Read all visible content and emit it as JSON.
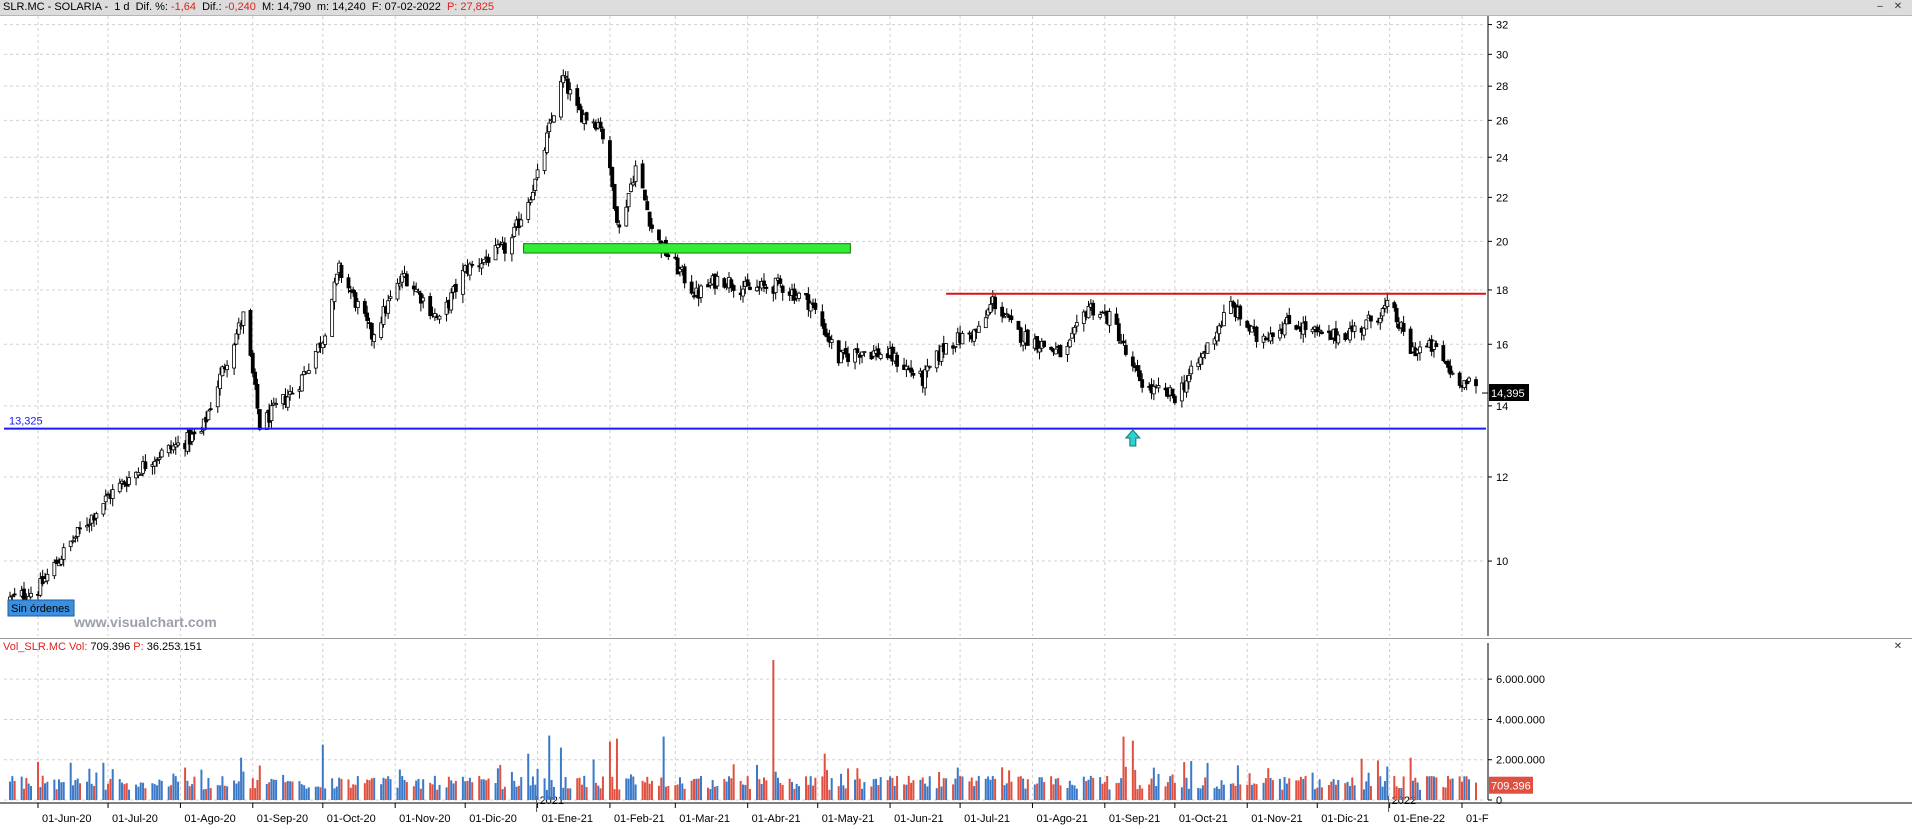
{
  "header": {
    "symbol": "SLR.MC - SOLARIA -",
    "timeframe": "1 d",
    "dif_pct_label": "Dif. %:",
    "dif_pct_value": "-1,64",
    "dif_label": "Dif.:",
    "dif_value": "-0,240",
    "max_label": "M:",
    "max_value": "14,790",
    "min_label": "m:",
    "min_value": "14,240",
    "date_label": "F:",
    "date_value": "07-02-2022",
    "p_label": "P:",
    "p_value": "27,825"
  },
  "volume_header": {
    "name": "Vol_SLR.MC",
    "vol_label": "Vol:",
    "vol_value": "709.396",
    "p_label": "P:",
    "p_value": "36.253.151"
  },
  "watermark": "www.visualchart.com",
  "orders_badge": "Sin órdenes",
  "colors": {
    "candle": "#000000",
    "support_line": "#1a1aff",
    "resistance_line": "#e01010",
    "zone_fill": "#33ee33",
    "zone_border": "#117711",
    "volume_up": "#3a78c8",
    "volume_down": "#e05040",
    "arrow": "#30d0d0",
    "grid": "#d0d0d0"
  },
  "chart_data": {
    "type": "candlestick",
    "y_scale": "log",
    "ylim": [
      8.5,
      32.6
    ],
    "y_ticks": [
      10,
      12,
      14,
      16,
      18,
      20,
      22,
      24,
      26,
      28,
      30,
      32
    ],
    "x_ticks": [
      "01-Jun-20",
      "01-Jul-20",
      "01-Ago-20",
      "01-Sep-20",
      "01-Oct-20",
      "01-Nov-20",
      "01-Dic-20",
      "01-Ene-21",
      "01-Feb-21",
      "01-Mar-21",
      "01-Abr-21",
      "01-May-21",
      "01-Jun-21",
      "01-Jul-21",
      "01-Ago-21",
      "01-Sep-21",
      "01-Oct-21",
      "01-Nov-21",
      "01-Dic-21",
      "01-Ene-22",
      "01-F"
    ],
    "year_labels": [
      {
        "label": "2021",
        "at": "01-Ene-21"
      },
      {
        "label": "2022",
        "at": "01-Ene-22"
      }
    ],
    "price_path": [
      [
        "2020-05-20",
        9.2
      ],
      [
        "2020-06-01",
        9.4
      ],
      [
        "2020-06-15",
        10.4
      ],
      [
        "2020-07-01",
        11.5
      ],
      [
        "2020-07-20",
        12.5
      ],
      [
        "2020-08-10",
        13.2
      ],
      [
        "2020-08-28",
        17.0
      ],
      [
        "2020-09-04",
        13.4
      ],
      [
        "2020-09-20",
        14.6
      ],
      [
        "2020-10-01",
        16.2
      ],
      [
        "2020-10-08",
        18.8
      ],
      [
        "2020-10-22",
        16.3
      ],
      [
        "2020-11-05",
        18.6
      ],
      [
        "2020-11-20",
        16.8
      ],
      [
        "2020-12-01",
        18.8
      ],
      [
        "2020-12-20",
        19.8
      ],
      [
        "2021-01-01",
        23.0
      ],
      [
        "2021-01-12",
        28.5
      ],
      [
        "2021-01-18",
        26.5
      ],
      [
        "2021-01-28",
        25.8
      ],
      [
        "2021-02-05",
        20.5
      ],
      [
        "2021-02-12",
        23.5
      ],
      [
        "2021-02-20",
        20.2
      ],
      [
        "2021-03-01",
        19.0
      ],
      [
        "2021-03-10",
        17.8
      ],
      [
        "2021-03-20",
        18.5
      ],
      [
        "2021-04-01",
        18.0
      ],
      [
        "2021-04-15",
        18.2
      ],
      [
        "2021-04-28",
        17.5
      ],
      [
        "2021-05-10",
        15.5
      ],
      [
        "2021-05-20",
        15.8
      ],
      [
        "2021-06-01",
        15.6
      ],
      [
        "2021-06-15",
        14.8
      ],
      [
        "2021-06-25",
        16.0
      ],
      [
        "2021-07-10",
        16.5
      ],
      [
        "2021-07-15",
        17.6
      ],
      [
        "2021-07-25",
        16.4
      ],
      [
        "2021-08-05",
        16.0
      ],
      [
        "2021-08-15",
        15.6
      ],
      [
        "2021-08-25",
        17.4
      ],
      [
        "2021-09-05",
        16.8
      ],
      [
        "2021-09-12",
        15.2
      ],
      [
        "2021-09-20",
        14.5
      ],
      [
        "2021-10-01",
        14.3
      ],
      [
        "2021-10-10",
        15.2
      ],
      [
        "2021-10-25",
        17.4
      ],
      [
        "2021-11-05",
        16.2
      ],
      [
        "2021-11-20",
        16.8
      ],
      [
        "2021-12-05",
        16.2
      ],
      [
        "2021-12-20",
        16.6
      ],
      [
        "2022-01-01",
        17.4
      ],
      [
        "2022-01-10",
        15.8
      ],
      [
        "2022-01-20",
        15.9
      ],
      [
        "2022-01-28",
        15.0
      ],
      [
        "2022-02-07",
        14.5
      ]
    ],
    "last_price": "14,395",
    "support": {
      "value": 13.325,
      "label": "13,325",
      "from": "2020-05-20",
      "to": "2022-02-07"
    },
    "resistance": {
      "value": 17.85,
      "from": "2021-06-25",
      "to": "2022-02-07"
    },
    "zone": {
      "from": "2020-12-26",
      "to": "2021-05-15",
      "low": 19.5,
      "high": 19.9
    },
    "buy_signal": {
      "date": "2021-09-13",
      "price": 13.0
    },
    "volume": {
      "y_ticks": [
        0,
        2000000,
        4000000,
        6000000
      ],
      "y_tick_labels": [
        "0",
        "2.000.000",
        "4.000.000",
        "6.000.000"
      ],
      "ylim": [
        0,
        7200000
      ],
      "last_value": "709.396",
      "spikes": [
        [
          "2020-06-15",
          1850000
        ],
        [
          "2020-08-28",
          2100000
        ],
        [
          "2020-10-02",
          2750000
        ],
        [
          "2020-12-29",
          2300000
        ],
        [
          "2021-01-07",
          3200000
        ],
        [
          "2021-01-12",
          2600000
        ],
        [
          "2021-02-01",
          2900000
        ],
        [
          "2021-02-05",
          3050000
        ],
        [
          "2021-02-25",
          3150000
        ],
        [
          "2021-04-12",
          6950000
        ],
        [
          "2021-05-05",
          2300000
        ],
        [
          "2021-09-10",
          3150000
        ],
        [
          "2021-09-13",
          2950000
        ],
        [
          "2021-12-20",
          2050000
        ],
        [
          "2022-01-10",
          2100000
        ]
      ]
    }
  }
}
